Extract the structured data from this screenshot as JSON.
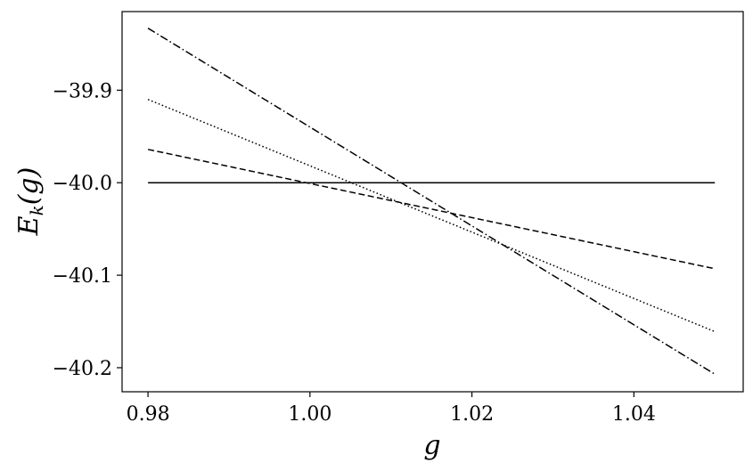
{
  "chart_data": {
    "type": "line",
    "title": "",
    "xlabel": "g",
    "ylabel_parts": {
      "main": "E",
      "sub": "k",
      "rest": "(g)"
    },
    "xlim": [
      0.9768,
      1.0535
    ],
    "ylim": [
      -40.226,
      -39.815
    ],
    "grid": false,
    "legend": "none",
    "x_ticks": [
      {
        "value": 0.98,
        "label": "0.98"
      },
      {
        "value": 1.0,
        "label": "1.00"
      },
      {
        "value": 1.02,
        "label": "1.02"
      },
      {
        "value": 1.04,
        "label": "1.04"
      }
    ],
    "y_ticks": [
      {
        "value": -39.9,
        "label": "−39.9"
      },
      {
        "value": -40.0,
        "label": "−40.0"
      },
      {
        "value": -40.1,
        "label": "−40.1"
      },
      {
        "value": -40.2,
        "label": "−40.2"
      }
    ],
    "series": [
      {
        "style": "solid",
        "color": "#000000",
        "x": [
          0.98,
          1.05
        ],
        "y": [
          -40.0,
          -40.0
        ]
      },
      {
        "style": "dashed",
        "color": "#000000",
        "x": [
          0.98,
          1.05
        ],
        "y": [
          -39.964,
          -40.093
        ]
      },
      {
        "style": "dotted",
        "color": "#000000",
        "x": [
          0.98,
          1.05
        ],
        "y": [
          -39.91,
          -40.161
        ]
      },
      {
        "style": "dashdot",
        "color": "#000000",
        "x": [
          0.98,
          1.05
        ],
        "y": [
          -39.833,
          -40.207
        ]
      }
    ]
  }
}
